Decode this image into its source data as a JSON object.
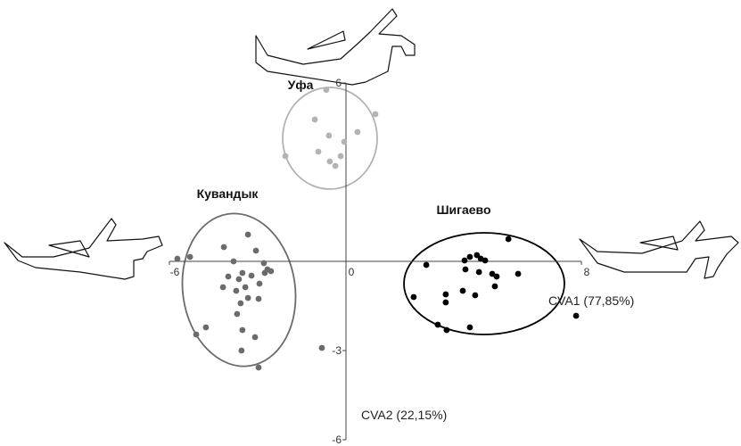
{
  "chart_data": {
    "type": "scatter",
    "xlabel": "CVA1 (77,85%)",
    "ylabel": "CVA2 (22,15%)",
    "xlim": [
      -6,
      8
    ],
    "ylim": [
      -6,
      6
    ],
    "xticks": [
      -6,
      0,
      8
    ],
    "yticks": [
      6,
      -3,
      -6
    ],
    "series": [
      {
        "name": "Уфа",
        "color": "#b3b3b3",
        "x": [
          -0.67,
          1.0,
          -1.06,
          0.39,
          -0.58,
          -0.06,
          -0.94,
          -2.06,
          -0.18,
          -0.55,
          -0.36
        ],
        "y": [
          5.77,
          4.95,
          4.77,
          4.35,
          4.23,
          4.02,
          3.69,
          3.54,
          3.54,
          3.36,
          3.21
        ]
      },
      {
        "name": "Кувандык",
        "color": "#6b6b6b",
        "x": [
          -5.73,
          -5.3,
          -4.15,
          -3.33,
          -3.06,
          -3.82,
          -2.79,
          -2.67,
          -2.55,
          -2.76,
          -3.52,
          -4.0,
          -3.21,
          -3.64,
          -2.94,
          -4.18,
          -3.42,
          -3.73,
          -3.33,
          -3.58,
          -2.97,
          -3.7,
          -4.76,
          -5.09,
          -3.52,
          -3.09,
          -3.55,
          -2.97,
          -0.82
        ],
        "y": [
          0.09,
          0.15,
          0.48,
          0.9,
          0.36,
          0,
          -0.06,
          -0.27,
          -0.33,
          -0.39,
          -0.39,
          -0.51,
          -0.48,
          -0.6,
          -0.75,
          -0.87,
          -0.87,
          -0.99,
          -1.23,
          -1.41,
          -1.26,
          -1.77,
          -2.22,
          -2.46,
          -2.31,
          -2.55,
          -3.0,
          -3.57,
          -2.91
        ]
      },
      {
        "name": "Шигаево",
        "color": "#000000",
        "x": [
          5.52,
          4.45,
          4.21,
          4.58,
          4.03,
          4.73,
          2.73,
          4.06,
          4.52,
          4.97,
          5.85,
          5.12,
          5.06,
          3.97,
          3.39,
          4.39,
          2.3,
          3.39,
          3.12,
          4.21,
          3.42,
          7.82
        ],
        "y": [
          0.75,
          0.21,
          0.15,
          0.09,
          0.03,
          0.03,
          -0.12,
          -0.27,
          -0.36,
          -0.42,
          -0.42,
          -0.51,
          -0.84,
          -0.99,
          -1.11,
          -1.14,
          -1.2,
          -1.38,
          -2.13,
          -2.22,
          -2.31,
          -1.83
        ]
      }
    ]
  }
}
